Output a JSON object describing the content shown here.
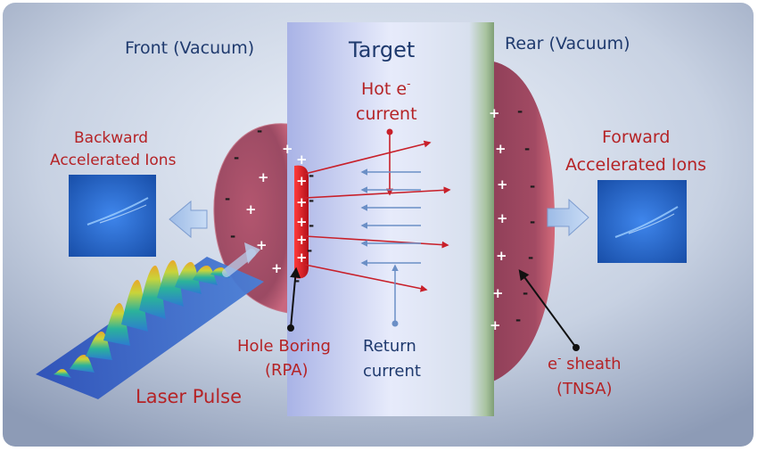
{
  "labels": {
    "front": "Front (Vacuum)",
    "target": "Target",
    "rear": "Rear (Vacuum)",
    "hot_current_line1": "Hot e",
    "hot_current_sup": "-",
    "hot_current_line2": "current",
    "backward_line1": "Backward",
    "backward_line2": "Accelerated Ions",
    "forward_line1": "Forward",
    "forward_line2": "Accelerated Ions",
    "hole_boring_line1": "Hole Boring",
    "hole_boring_line2": "(RPA)",
    "return_line1": "Return",
    "return_line2": "current",
    "sheath_sup": "-",
    "sheath_line1": "e",
    "sheath_line1_rest": " sheath",
    "sheath_line2": "(TNSA)",
    "laser": "Laser Pulse"
  },
  "charges": {
    "plus": "+",
    "minus": "-"
  },
  "colors": {
    "title_blue": "#1f3a6e",
    "label_red": "#b52326",
    "bubble": "#9b4a63",
    "hot_arrow": "#c8202a",
    "return_arrow": "#6b8fc6",
    "ion_panel": "#1e5fc4"
  }
}
